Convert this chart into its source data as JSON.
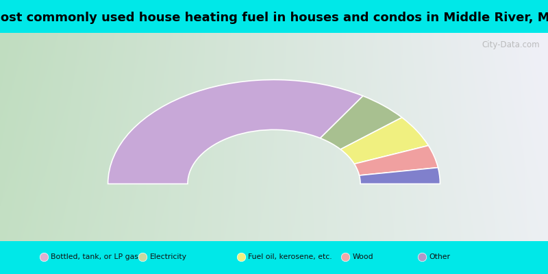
{
  "title": "Most commonly used house heating fuel in houses and condos in Middle River, MN",
  "title_fontsize": 13,
  "segments": [
    {
      "label": "Bottled, tank, or LP gas",
      "value": 68,
      "color": "#c8a8d8"
    },
    {
      "label": "Electricity",
      "value": 10,
      "color": "#a8c090"
    },
    {
      "label": "Fuel oil, kerosene, etc.",
      "value": 10,
      "color": "#f0f080"
    },
    {
      "label": "Wood",
      "value": 7,
      "color": "#f0a0a0"
    },
    {
      "label": "Other",
      "value": 5,
      "color": "#8080cc"
    }
  ],
  "legend_colors": [
    "#e0b0d0",
    "#c8d8a0",
    "#f0f080",
    "#f0a8a8",
    "#b098c8"
  ],
  "bg_cyan": "#00e8e8",
  "watermark": "City-Data.com",
  "outer_r": 1.0,
  "inner_r": 0.52
}
